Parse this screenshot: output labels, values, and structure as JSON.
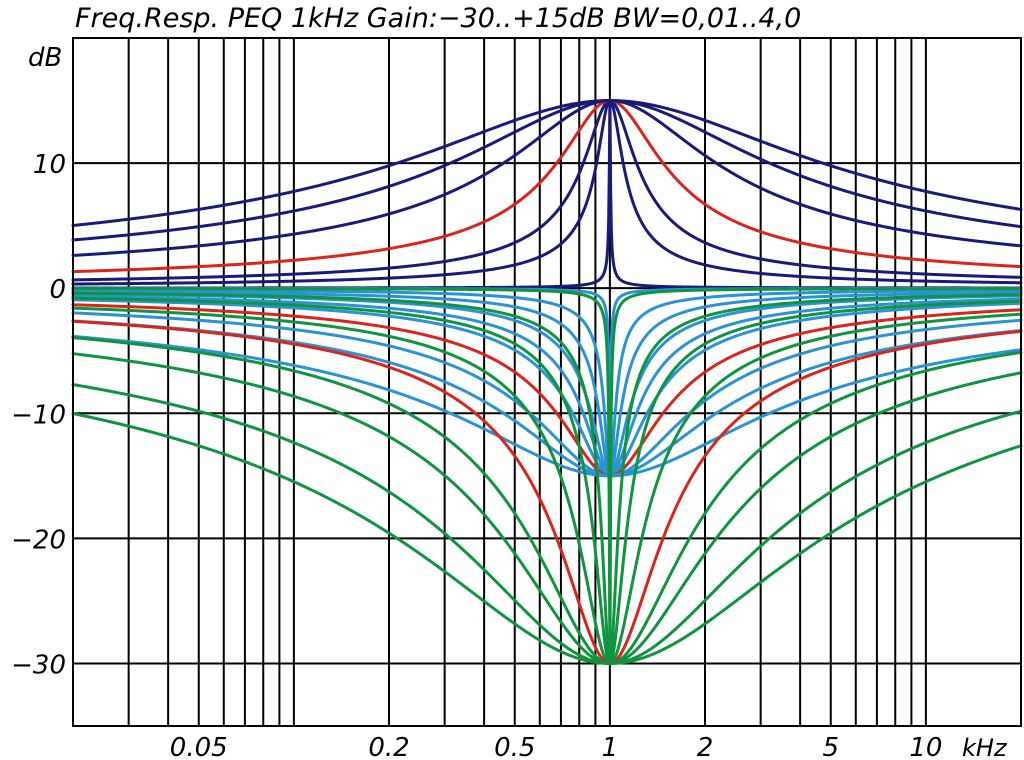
{
  "chart_data": {
    "type": "line",
    "title": "Freq.Resp. PEQ 1kHz Gain:−30..+15dB BW=0,01..4,0",
    "ylabel": "dB",
    "xlabel": "",
    "x_unit_label": "kHz",
    "x_scale": "log",
    "xlim": [
      0.02,
      20
    ],
    "ylim": [
      -35,
      20
    ],
    "center_frequency_khz": 1,
    "grid": true,
    "legend": "none",
    "x_tick_labels": [
      {
        "value": 0.05,
        "label": "0.05"
      },
      {
        "value": 0.2,
        "label": "0.2"
      },
      {
        "value": 0.5,
        "label": "0.5"
      },
      {
        "value": 1,
        "label": "1"
      },
      {
        "value": 2,
        "label": "2"
      },
      {
        "value": 5,
        "label": "5"
      },
      {
        "value": 10,
        "label": "10"
      }
    ],
    "y_tick_labels": [
      {
        "value": 10,
        "label": "10"
      },
      {
        "value": 0,
        "label": "0"
      },
      {
        "value": -10,
        "label": "−10"
      },
      {
        "value": -20,
        "label": "−20"
      },
      {
        "value": -30,
        "label": "−30"
      }
    ],
    "colors": {
      "boost": "#1a1a7a",
      "boost_highlight": "#d9251c",
      "cut_minus15": "#2a93d5",
      "cut_minus15_highlight": "#d9251c",
      "cut_minus30": "#0f9440",
      "cut_minus30_highlight": "#d9251c",
      "grid": "#000000"
    },
    "series": [
      {
        "gain_db": 15,
        "bandwidth_oct": 0.01,
        "color": "#1a1a7a"
      },
      {
        "gain_db": 15,
        "bandwidth_oct": 0.25,
        "color": "#1a1a7a"
      },
      {
        "gain_db": 15,
        "bandwidth_oct": 0.5,
        "color": "#1a1a7a"
      },
      {
        "gain_db": 15,
        "bandwidth_oct": 1.0,
        "color": "#d9251c"
      },
      {
        "gain_db": 15,
        "bandwidth_oct": 2.0,
        "color": "#1a1a7a"
      },
      {
        "gain_db": 15,
        "bandwidth_oct": 3.0,
        "color": "#1a1a7a"
      },
      {
        "gain_db": 15,
        "bandwidth_oct": 4.0,
        "color": "#1a1a7a"
      },
      {
        "gain_db": -15,
        "bandwidth_oct": 0.01,
        "color": "#2a93d5"
      },
      {
        "gain_db": -15,
        "bandwidth_oct": 0.1,
        "color": "#2a93d5"
      },
      {
        "gain_db": -15,
        "bandwidth_oct": 0.2,
        "color": "#2a93d5"
      },
      {
        "gain_db": -15,
        "bandwidth_oct": 0.35,
        "color": "#2a93d5"
      },
      {
        "gain_db": -15,
        "bandwidth_oct": 0.5,
        "color": "#2a93d5"
      },
      {
        "gain_db": -15,
        "bandwidth_oct": 0.7,
        "color": "#2a93d5"
      },
      {
        "gain_db": -15,
        "bandwidth_oct": 1.0,
        "color": "#d9251c"
      },
      {
        "gain_db": -15,
        "bandwidth_oct": 1.5,
        "color": "#2a93d5"
      },
      {
        "gain_db": -15,
        "bandwidth_oct": 2.0,
        "color": "#2a93d5"
      },
      {
        "gain_db": -15,
        "bandwidth_oct": 3.0,
        "color": "#2a93d5"
      },
      {
        "gain_db": -30,
        "bandwidth_oct": 0.01,
        "color": "#0f9440"
      },
      {
        "gain_db": -30,
        "bandwidth_oct": 0.15,
        "color": "#0f9440"
      },
      {
        "gain_db": -30,
        "bandwidth_oct": 0.3,
        "color": "#0f9440"
      },
      {
        "gain_db": -30,
        "bandwidth_oct": 0.6,
        "color": "#0f9440"
      },
      {
        "gain_db": -30,
        "bandwidth_oct": 1.0,
        "color": "#d9251c"
      },
      {
        "gain_db": -30,
        "bandwidth_oct": 1.5,
        "color": "#0f9440"
      },
      {
        "gain_db": -30,
        "bandwidth_oct": 2.0,
        "color": "#0f9440"
      },
      {
        "gain_db": -30,
        "bandwidth_oct": 3.0,
        "color": "#0f9440"
      },
      {
        "gain_db": -30,
        "bandwidth_oct": 4.0,
        "color": "#0f9440"
      }
    ]
  }
}
